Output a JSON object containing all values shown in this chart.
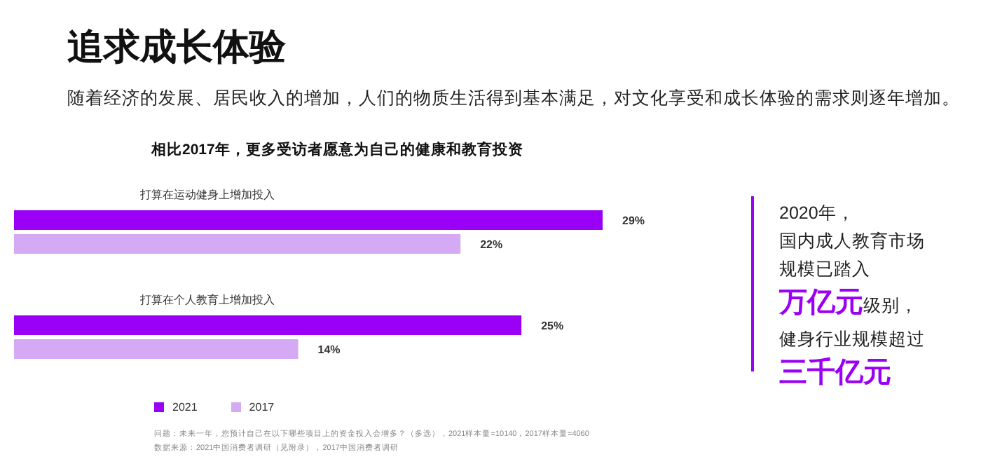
{
  "chart_data": {
    "type": "bar",
    "orientation": "horizontal",
    "title": "追求成长体验",
    "subtitle": "随着经济的发展、居民收入的增加，人们的物质生活得到基本满足，对文化享受和成长体验的需求则逐年增加。",
    "categories": [
      "打算在运动健身上增加投入",
      "打算在个人教育上增加投入"
    ],
    "series": [
      {
        "name": "2021",
        "color": "#9a00f5",
        "values": [
          29,
          25
        ],
        "value_labels": [
          "29%",
          "25%"
        ]
      },
      {
        "name": "2017",
        "color": "#d4aaf5",
        "values": [
          22,
          14
        ],
        "value_labels": [
          "22%",
          "14%"
        ]
      }
    ],
    "legend": "bottom left",
    "annotations": [
      "相比2017年，更多受访者愿意为自己的健康和教育投资",
      "问题：未来一年，您预计自己在以下哪些项目上的资金投入会增多？（多选），2021样本量=10140，2017样本量=4060",
      "数据来源：2021中国消费者调研（见附录），2017中国消费者调研",
      "2020年，",
      "国内成人教育市场",
      "规模已踏入",
      "万亿元",
      "级别，",
      "健身行业规模超过",
      "三千亿元"
    ]
  }
}
